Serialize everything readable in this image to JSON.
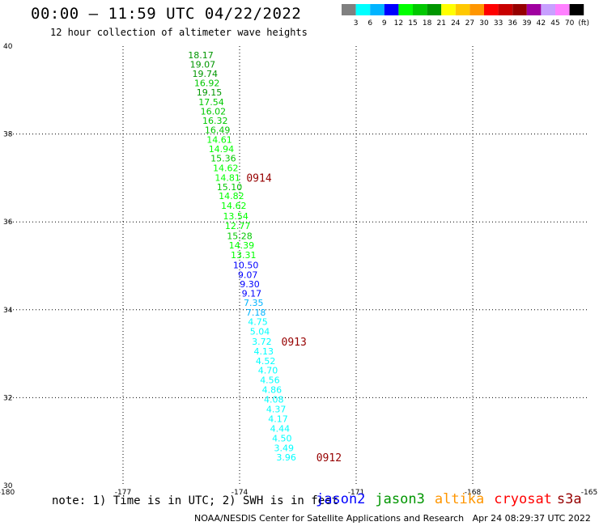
{
  "header": {
    "title": "00:00 – 11:59 UTC 04/22/2022",
    "subtitle": "12 hour collection of altimeter wave heights"
  },
  "colorbar": {
    "colors": [
      "#808080",
      "#00ffff",
      "#00b4ff",
      "#0000ff",
      "#00ff00",
      "#00c800",
      "#009600",
      "#ffff00",
      "#ffc800",
      "#ff9600",
      "#ff0000",
      "#c80000",
      "#960000",
      "#a000a0",
      "#c8a0ff",
      "#ff80ff",
      "#000000"
    ],
    "labels": [
      "3",
      "6",
      "9",
      "12",
      "15",
      "18",
      "21",
      "24",
      "27",
      "30",
      "33",
      "36",
      "39",
      "42",
      "45",
      "70",
      "(ft)"
    ]
  },
  "chart_data": {
    "type": "scatter",
    "title": "00:00 – 11:59 UTC 04/22/2022",
    "subtitle": "12 hour collection of altimeter wave heights",
    "xlim": [
      -180,
      -165
    ],
    "ylim": [
      30,
      40
    ],
    "x_ticks": [
      "-180",
      "-177",
      "-174",
      "-171",
      "-168",
      "-165"
    ],
    "y_ticks": [
      "30",
      "32",
      "34",
      "36",
      "38",
      "40"
    ],
    "x_tick_values": [
      -180,
      -177,
      -174,
      -171,
      -168,
      -165
    ],
    "y_tick_values": [
      30,
      32,
      34,
      36,
      38,
      40
    ],
    "grid": true,
    "points": [
      {
        "x": -175.0,
        "y": 39.8,
        "label": "18.17",
        "color": "#009600"
      },
      {
        "x": -174.95,
        "y": 39.59,
        "label": "19.07",
        "color": "#009600"
      },
      {
        "x": -174.89,
        "y": 39.37,
        "label": "19.74",
        "color": "#009600"
      },
      {
        "x": -174.84,
        "y": 39.16,
        "label": "16.92",
        "color": "#00c800"
      },
      {
        "x": -174.78,
        "y": 38.95,
        "label": "19.15",
        "color": "#009600"
      },
      {
        "x": -174.73,
        "y": 38.73,
        "label": "17.54",
        "color": "#00c800"
      },
      {
        "x": -174.68,
        "y": 38.52,
        "label": "16.02",
        "color": "#00c800"
      },
      {
        "x": -174.63,
        "y": 38.31,
        "label": "16.32",
        "color": "#00c800"
      },
      {
        "x": -174.57,
        "y": 38.09,
        "label": "16.49",
        "color": "#00c800"
      },
      {
        "x": -174.52,
        "y": 37.87,
        "label": "14.61",
        "color": "#00ff00"
      },
      {
        "x": -174.47,
        "y": 37.66,
        "label": "14.94",
        "color": "#00ff00"
      },
      {
        "x": -174.42,
        "y": 37.45,
        "label": "15.36",
        "color": "#00c800"
      },
      {
        "x": -174.36,
        "y": 37.23,
        "label": "14.62",
        "color": "#00ff00"
      },
      {
        "x": -174.31,
        "y": 37.01,
        "label": "14.81",
        "color": "#00ff00"
      },
      {
        "x": -174.26,
        "y": 36.8,
        "label": "15.10",
        "color": "#00c800"
      },
      {
        "x": -174.21,
        "y": 36.59,
        "label": "14.82",
        "color": "#00ff00"
      },
      {
        "x": -174.15,
        "y": 36.37,
        "label": "14.62",
        "color": "#00ff00"
      },
      {
        "x": -174.1,
        "y": 36.13,
        "label": "13.54",
        "color": "#00ff00"
      },
      {
        "x": -174.05,
        "y": 35.91,
        "label": "12.77",
        "color": "#00ff00"
      },
      {
        "x": -174.0,
        "y": 35.68,
        "label": "15.28",
        "color": "#00c800"
      },
      {
        "x": -173.95,
        "y": 35.47,
        "label": "14.39",
        "color": "#00ff00"
      },
      {
        "x": -173.9,
        "y": 35.25,
        "label": "13.31",
        "color": "#00ff00"
      },
      {
        "x": -173.84,
        "y": 35.02,
        "label": "10.50",
        "color": "#0000ff"
      },
      {
        "x": -173.79,
        "y": 34.8,
        "label": "9.07",
        "color": "#0000ff"
      },
      {
        "x": -173.74,
        "y": 34.59,
        "label": "9.30",
        "color": "#0000ff"
      },
      {
        "x": -173.69,
        "y": 34.37,
        "label": "9.17",
        "color": "#0000ff"
      },
      {
        "x": -173.64,
        "y": 34.16,
        "label": "7.35",
        "color": "#00b4ff"
      },
      {
        "x": -173.58,
        "y": 33.94,
        "label": "7.18",
        "color": "#00b4ff"
      },
      {
        "x": -173.53,
        "y": 33.73,
        "label": "4.75",
        "color": "#00ffff"
      },
      {
        "x": -173.48,
        "y": 33.51,
        "label": "5.04",
        "color": "#00ffff"
      },
      {
        "x": -173.43,
        "y": 33.28,
        "label": "3.72",
        "color": "#00ffff"
      },
      {
        "x": -173.38,
        "y": 33.06,
        "label": "4.13",
        "color": "#00ffff"
      },
      {
        "x": -173.33,
        "y": 32.84,
        "label": "4.52",
        "color": "#00ffff"
      },
      {
        "x": -173.27,
        "y": 32.62,
        "label": "4.70",
        "color": "#00ffff"
      },
      {
        "x": -173.22,
        "y": 32.4,
        "label": "4.56",
        "color": "#00ffff"
      },
      {
        "x": -173.17,
        "y": 32.18,
        "label": "4.86",
        "color": "#00ffff"
      },
      {
        "x": -173.12,
        "y": 31.96,
        "label": "4.08",
        "color": "#00ffff"
      },
      {
        "x": -173.06,
        "y": 31.74,
        "label": "4.37",
        "color": "#00ffff"
      },
      {
        "x": -173.01,
        "y": 31.52,
        "label": "4.17",
        "color": "#00ffff"
      },
      {
        "x": -172.96,
        "y": 31.3,
        "label": "4.44",
        "color": "#00ffff"
      },
      {
        "x": -172.91,
        "y": 31.08,
        "label": "4.50",
        "color": "#00ffff"
      },
      {
        "x": -172.86,
        "y": 30.86,
        "label": "3.49",
        "color": "#00ffff"
      },
      {
        "x": -172.8,
        "y": 30.64,
        "label": "3.96",
        "color": "#00ffff"
      }
    ],
    "time_annotations": [
      {
        "x": -173.5,
        "y": 37.01,
        "label": "0914",
        "color": "#960000"
      },
      {
        "x": -172.6,
        "y": 33.28,
        "label": "0913",
        "color": "#960000"
      },
      {
        "x": -171.7,
        "y": 30.64,
        "label": "0912",
        "color": "#960000"
      }
    ]
  },
  "footer": {
    "note": "note: 1) Time is in UTC; 2) SWH is in feet",
    "satellites": [
      {
        "name": "jason2",
        "color": "#0000ff"
      },
      {
        "name": "jason3",
        "color": "#009600"
      },
      {
        "name": "altika",
        "color": "#ff9600"
      },
      {
        "name": "cryosat",
        "color": "#ff0000"
      },
      {
        "name": "s3a",
        "color": "#960000"
      }
    ],
    "credit": "NOAA/NESDIS Center for Satellite Applications and Research",
    "timestamp": "Apr 24 08:29:37 UTC 2022"
  }
}
